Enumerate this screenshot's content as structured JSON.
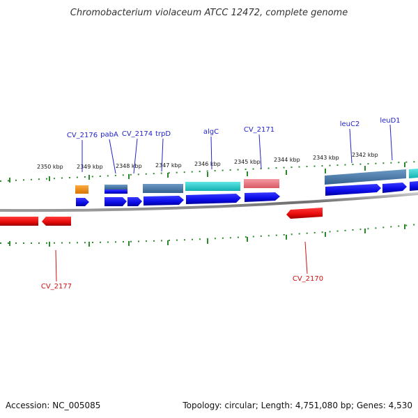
{
  "title": "Chromobacterium violaceum ATCC 12472, complete genome",
  "footer": {
    "accession": "Accession: NC_005085",
    "summary": "Topology: circular; Length: 4,751,080 bp; Genes: 4,530"
  },
  "kbp_labels": [
    "2350 kbp",
    "2349 kbp",
    "2348 kbp",
    "2347 kbp",
    "2346 kbp",
    "2345 kbp",
    "2344 kbp",
    "2343 kbp",
    "2342 kbp"
  ],
  "gene_labels_top": [
    "CV_2176",
    "pabA",
    "CV_2174",
    "trpD",
    "algC",
    "CV_2171",
    "leuC2",
    "leuD1"
  ],
  "gene_labels_bottom": [
    "CV_2177",
    "CV_2170"
  ],
  "colors": {
    "forward_gene": "#0a0ae6",
    "reverse_gene": "#e60a0a",
    "steel_feature": "#4a7fb0",
    "cyan_feature": "#22cccc",
    "pink_feature": "#e8707a",
    "orange_feature": "#f08c10",
    "tick": "#2a8a2a",
    "backbone": "#808080"
  }
}
